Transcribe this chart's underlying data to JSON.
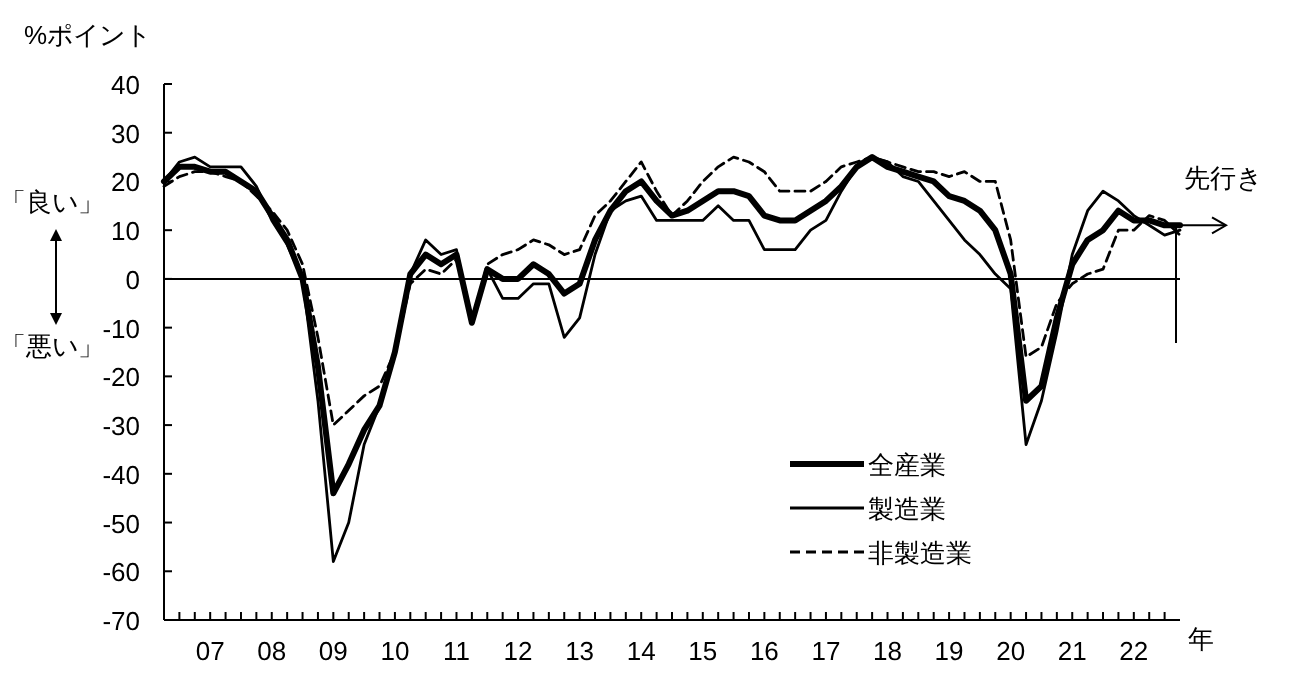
{
  "chart_data": {
    "type": "line",
    "ylabel": "%ポイント",
    "categories": [
      null,
      null,
      null,
      "07",
      null,
      null,
      null,
      "08",
      null,
      null,
      null,
      "09",
      null,
      null,
      null,
      "10",
      null,
      null,
      null,
      "11",
      null,
      null,
      null,
      "12",
      null,
      null,
      null,
      "13",
      null,
      null,
      null,
      "14",
      null,
      null,
      null,
      "15",
      null,
      null,
      null,
      "16",
      null,
      null,
      null,
      "17",
      null,
      null,
      null,
      "18",
      null,
      null,
      null,
      "19",
      null,
      null,
      null,
      "20",
      null,
      null,
      null,
      "21",
      null,
      null,
      null,
      "22",
      null,
      null,
      null
    ],
    "series": [
      {
        "name": "全産業",
        "color": "#000000",
        "line_style": "solid",
        "values": [
          20,
          23,
          23,
          22,
          22,
          20,
          18,
          13,
          8,
          0,
          -18,
          -44,
          -38,
          -31,
          -26,
          -15,
          1,
          5,
          3,
          5,
          -9,
          2,
          0,
          0,
          3,
          1,
          -3,
          -1,
          8,
          14,
          18,
          20,
          16,
          13,
          14,
          16,
          18,
          18,
          17,
          13,
          12,
          12,
          14,
          16,
          19,
          23,
          25,
          23,
          22,
          21,
          20,
          17,
          16,
          14,
          10,
          1,
          -25,
          -22,
          -8,
          3,
          8,
          10,
          14,
          12,
          12,
          11,
          11
        ]
      },
      {
        "name": "製造業",
        "color": "#000000",
        "line_style": "solid",
        "values": [
          20,
          24,
          25,
          23,
          23,
          23,
          19,
          12,
          7,
          0,
          -25,
          -58,
          -50,
          -34,
          -26,
          -15,
          1,
          8,
          5,
          6,
          -9,
          2,
          -4,
          -4,
          -1,
          -1,
          -12,
          -8,
          5,
          14,
          16,
          17,
          12,
          12,
          12,
          12,
          15,
          12,
          12,
          6,
          6,
          6,
          10,
          12,
          18,
          23,
          25,
          24,
          21,
          20,
          16,
          12,
          8,
          5,
          1,
          -2,
          -34,
          -25,
          -11,
          5,
          14,
          18,
          16,
          13,
          11,
          9,
          10
        ]
      },
      {
        "name": "非製造業",
        "color": "#000000",
        "line_style": "dashed",
        "values": [
          19,
          21,
          22,
          22,
          21,
          20,
          17,
          14,
          10,
          3,
          -12,
          -30,
          -27,
          -24,
          -22,
          -15,
          -1,
          2,
          1,
          4,
          -9,
          3,
          5,
          6,
          8,
          7,
          5,
          6,
          13,
          16,
          20,
          24,
          18,
          13,
          16,
          20,
          23,
          25,
          24,
          22,
          18,
          18,
          18,
          20,
          23,
          24,
          25,
          24,
          23,
          22,
          22,
          21,
          22,
          20,
          20,
          8,
          -16,
          -14,
          -5,
          -1,
          1,
          2,
          10,
          10,
          13,
          12,
          9
        ]
      }
    ],
    "ylim": [
      -70,
      40
    ],
    "yticks": [
      -70,
      -60,
      -50,
      -40,
      -30,
      -20,
      -10,
      0,
      10,
      20,
      30,
      40
    ],
    "ref_lines": [
      {
        "axis": "y",
        "value": 0,
        "color": "#000000"
      }
    ],
    "annotations": [
      "「良い」",
      "「悪い」",
      "先行き",
      "年"
    ],
    "legend": "bottom right",
    "grid": false
  }
}
